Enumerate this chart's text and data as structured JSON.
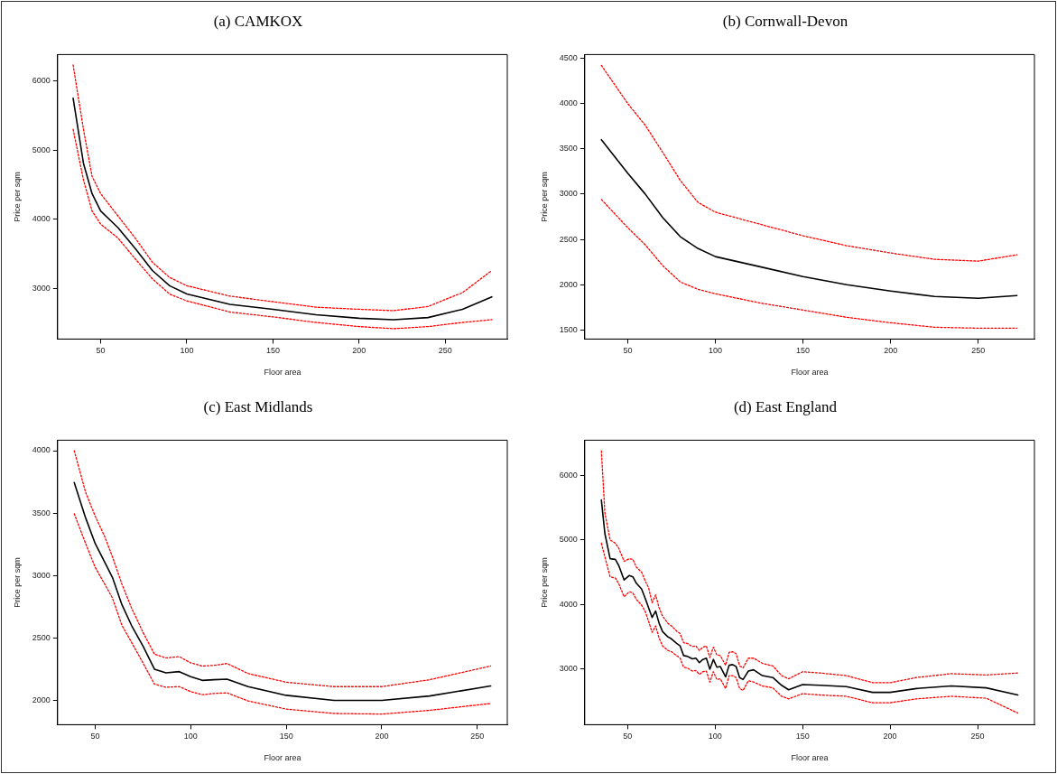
{
  "chart_data": [
    {
      "type": "line",
      "title": "(a) CAMKOX",
      "xlabel": "Floor area",
      "ylabel": "Price per sqm",
      "xlim": [
        25,
        286
      ],
      "ylim": [
        2270,
        6380
      ],
      "xticks": [
        50,
        100,
        150,
        200,
        250
      ],
      "yticks": [
        3000,
        4000,
        5000,
        6000
      ],
      "grid": false,
      "legend": false,
      "marker": "none",
      "x": [
        34,
        40,
        45,
        50,
        60,
        70,
        80,
        90,
        100,
        125,
        150,
        175,
        200,
        220,
        240,
        260,
        277
      ],
      "series": [
        {
          "color": "#000000",
          "line_style": "solid",
          "values": [
            5750,
            4810,
            4370,
            4120,
            3880,
            3580,
            3260,
            3040,
            2920,
            2770,
            2700,
            2620,
            2570,
            2550,
            2580,
            2700,
            2880
          ]
        },
        {
          "color": "#ff0000",
          "line_style": "dotted",
          "values": [
            6230,
            5300,
            4620,
            4370,
            4050,
            3730,
            3380,
            3160,
            3040,
            2890,
            2810,
            2730,
            2700,
            2680,
            2740,
            2940,
            3260
          ]
        },
        {
          "color": "#ff0000",
          "line_style": "dotted",
          "values": [
            5300,
            4570,
            4120,
            3930,
            3730,
            3430,
            3140,
            2920,
            2820,
            2660,
            2590,
            2510,
            2450,
            2420,
            2450,
            2510,
            2550
          ]
        }
      ]
    },
    {
      "type": "line",
      "title": "(b) Cornwall-Devon",
      "xlabel": "Floor area",
      "ylabel": "Price per sqm",
      "xlim": [
        25.5,
        282
      ],
      "ylim": [
        1400,
        4540
      ],
      "xticks": [
        50,
        100,
        150,
        200,
        250
      ],
      "yticks": [
        1500,
        2000,
        2500,
        3000,
        3500,
        4000,
        4500
      ],
      "grid": false,
      "legend": false,
      "marker": "none",
      "x": [
        35,
        50,
        60,
        70,
        80,
        90,
        100,
        125,
        150,
        175,
        200,
        225,
        250,
        272
      ],
      "series": [
        {
          "color": "#000000",
          "line_style": "solid",
          "values": [
            3600,
            3230,
            3000,
            2740,
            2530,
            2400,
            2310,
            2200,
            2090,
            2000,
            1930,
            1870,
            1850,
            1880
          ]
        },
        {
          "color": "#ff0000",
          "line_style": "dotted",
          "values": [
            4420,
            4000,
            3760,
            3460,
            3150,
            2910,
            2800,
            2670,
            2540,
            2430,
            2350,
            2280,
            2260,
            2330
          ]
        },
        {
          "color": "#ff0000",
          "line_style": "dotted",
          "values": [
            2940,
            2630,
            2440,
            2210,
            2030,
            1950,
            1900,
            1800,
            1720,
            1640,
            1580,
            1530,
            1520,
            1520
          ]
        }
      ]
    },
    {
      "type": "line",
      "title": "(c) East Midlands",
      "xlabel": "Floor area",
      "ylabel": "Price per sqm",
      "xlim": [
        30.3,
        265.7
      ],
      "ylim": [
        1805,
        4084
      ],
      "xticks": [
        50,
        100,
        150,
        200,
        250
      ],
      "yticks": [
        2000,
        2500,
        3000,
        3500,
        4000
      ],
      "grid": false,
      "legend": false,
      "marker": "none",
      "x": [
        39,
        45,
        50,
        55,
        59,
        64,
        69,
        75,
        81,
        87,
        94,
        100,
        106,
        112,
        119,
        130,
        150,
        175,
        200,
        225,
        257
      ],
      "series": [
        {
          "color": "#000000",
          "line_style": "solid",
          "values": [
            3745,
            3460,
            3255,
            3105,
            2985,
            2765,
            2600,
            2435,
            2250,
            2220,
            2230,
            2190,
            2160,
            2165,
            2170,
            2110,
            2040,
            2000,
            2000,
            2035,
            2115
          ]
        },
        {
          "color": "#ff0000",
          "line_style": "dotted",
          "values": [
            4000,
            3665,
            3475,
            3310,
            3150,
            2930,
            2740,
            2545,
            2370,
            2340,
            2350,
            2300,
            2275,
            2280,
            2295,
            2215,
            2145,
            2110,
            2110,
            2165,
            2275
          ]
        },
        {
          "color": "#ff0000",
          "line_style": "dotted",
          "values": [
            3495,
            3255,
            3065,
            2930,
            2820,
            2600,
            2465,
            2300,
            2130,
            2105,
            2110,
            2070,
            2045,
            2055,
            2060,
            1995,
            1930,
            1895,
            1890,
            1920,
            1975
          ]
        }
      ]
    },
    {
      "type": "line",
      "title": "(d) East England",
      "xlabel": "Floor area",
      "ylabel": "Price per sqm",
      "xlim": [
        25.5,
        282.5
      ],
      "ylim": [
        2140,
        6545
      ],
      "xticks": [
        50,
        100,
        150,
        200,
        250
      ],
      "yticks": [
        3000,
        4000,
        5000,
        6000
      ],
      "grid": false,
      "legend": false,
      "marker": "none",
      "x": [
        35,
        37,
        40,
        43,
        45,
        48,
        51,
        53,
        55,
        58,
        60,
        62,
        64,
        66,
        68,
        70,
        73,
        75,
        78,
        80,
        82,
        84,
        87,
        89,
        91,
        93,
        95,
        97,
        99,
        101,
        103,
        106,
        108,
        110,
        112,
        114,
        116,
        119,
        122,
        127,
        133,
        138,
        142,
        150,
        160,
        175,
        190,
        200,
        215,
        235,
        255,
        273
      ],
      "series": [
        {
          "color": "#000000",
          "line_style": "solid",
          "values": [
            5620,
            5100,
            4710,
            4700,
            4600,
            4380,
            4450,
            4430,
            4330,
            4240,
            4100,
            3950,
            3800,
            3900,
            3710,
            3580,
            3500,
            3470,
            3400,
            3360,
            3210,
            3200,
            3160,
            3170,
            3100,
            3150,
            3170,
            3000,
            3150,
            3030,
            3040,
            2880,
            3060,
            3070,
            3040,
            2870,
            2840,
            2970,
            2990,
            2900,
            2870,
            2750,
            2680,
            2760,
            2750,
            2730,
            2640,
            2640,
            2700,
            2740,
            2710,
            2600
          ]
        },
        {
          "color": "#ff0000",
          "line_style": "dotted",
          "values": [
            6380,
            5420,
            5000,
            4950,
            4870,
            4670,
            4710,
            4700,
            4580,
            4500,
            4370,
            4260,
            4030,
            4150,
            3950,
            3820,
            3710,
            3670,
            3590,
            3550,
            3410,
            3400,
            3350,
            3360,
            3290,
            3340,
            3360,
            3180,
            3340,
            3220,
            3210,
            3060,
            3260,
            3270,
            3240,
            3050,
            3020,
            3170,
            3170,
            3090,
            3050,
            2900,
            2850,
            2960,
            2940,
            2900,
            2790,
            2790,
            2870,
            2930,
            2910,
            2940
          ]
        },
        {
          "color": "#ff0000",
          "line_style": "dotted",
          "values": [
            4950,
            4740,
            4430,
            4410,
            4320,
            4120,
            4200,
            4180,
            4080,
            3990,
            3900,
            3740,
            3570,
            3670,
            3480,
            3360,
            3290,
            3270,
            3210,
            3170,
            3030,
            3020,
            2970,
            2980,
            2920,
            2960,
            2970,
            2800,
            2960,
            2840,
            2850,
            2700,
            2900,
            2900,
            2870,
            2700,
            2670,
            2820,
            2800,
            2740,
            2710,
            2580,
            2540,
            2620,
            2600,
            2580,
            2480,
            2480,
            2540,
            2580,
            2550,
            2320
          ]
        }
      ]
    }
  ]
}
